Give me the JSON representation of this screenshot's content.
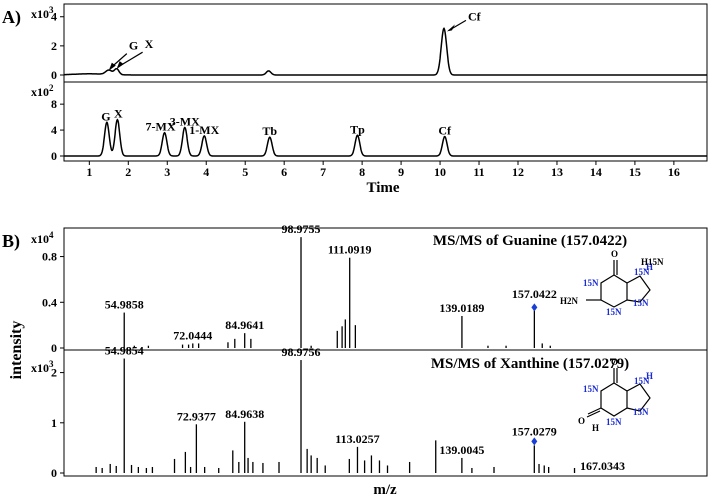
{
  "panel_labels": {
    "a": "A)",
    "b": "B)"
  },
  "chart_data": [
    {
      "type": "line",
      "panel": "A) top trace",
      "multiplier": {
        "base": "x10",
        "exp": "3"
      },
      "ylim": [
        0,
        4.6
      ],
      "y_ticks": [
        "0",
        "2",
        "4"
      ],
      "x_ticks": [
        "1",
        "2",
        "3",
        "4",
        "5",
        "6",
        "7",
        "8",
        "9",
        "10",
        "11",
        "12",
        "13",
        "14",
        "15",
        "16"
      ],
      "xlim": [
        0.35,
        16.85
      ],
      "peaks": [
        {
          "x": 0.1,
          "h": 0.25,
          "w": 0.08
        },
        {
          "x": 1.5,
          "h": 0.3,
          "w": 0.08
        },
        {
          "x": 1.7,
          "h": 0.4,
          "w": 0.06
        },
        {
          "x": 5.6,
          "h": 0.28,
          "w": 0.06
        },
        {
          "x": 10.1,
          "h": 3.2,
          "w": 0.07
        }
      ],
      "annotations": [
        {
          "label": "G",
          "x": 1.5,
          "y": 0.3
        },
        {
          "label": "X",
          "x": 1.7,
          "y": 0.4
        },
        {
          "label": "Cf",
          "x": 10.1,
          "y": 3.2
        }
      ]
    },
    {
      "type": "line",
      "panel": "A) bottom trace",
      "multiplier": {
        "base": "x10",
        "exp": "2"
      },
      "ylim": [
        0,
        10.8
      ],
      "y_ticks": [
        "0",
        "4",
        "8"
      ],
      "x_ticks": [
        "1",
        "2",
        "3",
        "4",
        "5",
        "6",
        "7",
        "8",
        "9",
        "10",
        "11",
        "12",
        "13",
        "14",
        "15",
        "16"
      ],
      "xlim": [
        0.35,
        16.85
      ],
      "xlabel": "Time",
      "peaks": [
        {
          "x": 1.45,
          "h": 5.2,
          "w": 0.06
        },
        {
          "x": 1.72,
          "h": 5.6,
          "w": 0.06
        },
        {
          "x": 2.93,
          "h": 3.6,
          "w": 0.06
        },
        {
          "x": 3.45,
          "h": 4.4,
          "w": 0.06
        },
        {
          "x": 3.95,
          "h": 3.1,
          "w": 0.06
        },
        {
          "x": 5.63,
          "h": 2.9,
          "w": 0.06
        },
        {
          "x": 7.88,
          "h": 3.2,
          "w": 0.06
        },
        {
          "x": 10.12,
          "h": 3.0,
          "w": 0.06
        }
      ],
      "annotations": [
        {
          "label": "G",
          "x": 1.45,
          "y": 5.2
        },
        {
          "label": "X",
          "x": 1.72,
          "y": 5.6
        },
        {
          "label": "7-MX",
          "x": 2.93,
          "y": 3.6
        },
        {
          "label": "3-MX",
          "x": 3.45,
          "y": 4.4
        },
        {
          "label": "1-MX",
          "x": 3.95,
          "y": 3.1
        },
        {
          "label": "Tb",
          "x": 5.63,
          "y": 2.9
        },
        {
          "label": "Tp",
          "x": 7.88,
          "y": 3.2
        },
        {
          "label": "Cf",
          "x": 10.12,
          "y": 3.0
        }
      ]
    },
    {
      "type": "bar",
      "panel": "B) top spectrum",
      "title": "MS/MS of Guanine (157.0422)",
      "multiplier": {
        "base": "x10",
        "exp": "4"
      },
      "ylim": [
        0,
        1.05
      ],
      "y_ticks": [
        "0",
        "0.4",
        "0.8"
      ],
      "xlim": [
        40,
        200
      ],
      "bars": [
        {
          "x": 54.9858,
          "y": 0.31
        },
        {
          "x": 57.5,
          "y": 0.02
        },
        {
          "x": 61.0,
          "y": 0.02
        },
        {
          "x": 69.5,
          "y": 0.03
        },
        {
          "x": 71.0,
          "y": 0.03
        },
        {
          "x": 72.0444,
          "y": 0.04
        },
        {
          "x": 73.5,
          "y": 0.04
        },
        {
          "x": 80.8,
          "y": 0.05
        },
        {
          "x": 82.5,
          "y": 0.08
        },
        {
          "x": 84.9641,
          "y": 0.13
        },
        {
          "x": 86.5,
          "y": 0.08
        },
        {
          "x": 98.9755,
          "y": 0.97
        },
        {
          "x": 101.5,
          "y": 0.02
        },
        {
          "x": 108.0,
          "y": 0.15
        },
        {
          "x": 109.2,
          "y": 0.19
        },
        {
          "x": 110.0,
          "y": 0.25
        },
        {
          "x": 111.0919,
          "y": 0.79
        },
        {
          "x": 112.5,
          "y": 0.2
        },
        {
          "x": 139.0189,
          "y": 0.28
        },
        {
          "x": 145.5,
          "y": 0.02
        },
        {
          "x": 150.0,
          "y": 0.02
        },
        {
          "x": 157.0422,
          "y": 0.35
        },
        {
          "x": 159.0,
          "y": 0.04
        },
        {
          "x": 161.0,
          "y": 0.02
        }
      ],
      "labels": [
        {
          "text": "54.9858",
          "x": 54.9858,
          "y": 0.31
        },
        {
          "text": "72.0444",
          "x": 72.0444,
          "y": 0.04
        },
        {
          "text": "84.9641",
          "x": 84.9641,
          "y": 0.13
        },
        {
          "text": "98.9755",
          "x": 98.9755,
          "y": 0.97
        },
        {
          "text": "111.0919",
          "x": 111.0919,
          "y": 0.79
        },
        {
          "text": "139.0189",
          "x": 139.0189,
          "y": 0.28
        },
        {
          "text": "157.0422",
          "x": 157.0422,
          "y": 0.35
        }
      ],
      "precursor": {
        "x": 157.0422,
        "y": 0.32
      }
    },
    {
      "type": "bar",
      "panel": "B) bottom spectrum",
      "title": "MS/MS of Xanthine (157.0279)",
      "multiplier": {
        "base": "x10",
        "exp": "3"
      },
      "ylim": [
        0,
        2.45
      ],
      "y_ticks": [
        "0",
        "1",
        "2"
      ],
      "xlim": [
        40,
        200
      ],
      "xlabel": "m/z",
      "ylabel": "intensity",
      "bars": [
        {
          "x": 48.0,
          "y": 0.12
        },
        {
          "x": 49.5,
          "y": 0.1
        },
        {
          "x": 51.5,
          "y": 0.18
        },
        {
          "x": 53.0,
          "y": 0.14
        },
        {
          "x": 54.9854,
          "y": 2.28
        },
        {
          "x": 56.8,
          "y": 0.16
        },
        {
          "x": 58.5,
          "y": 0.12
        },
        {
          "x": 60.5,
          "y": 0.1
        },
        {
          "x": 62.0,
          "y": 0.12
        },
        {
          "x": 67.5,
          "y": 0.28
        },
        {
          "x": 70.2,
          "y": 0.42
        },
        {
          "x": 71.5,
          "y": 0.12
        },
        {
          "x": 72.9377,
          "y": 0.97
        },
        {
          "x": 75.0,
          "y": 0.12
        },
        {
          "x": 78.5,
          "y": 0.1
        },
        {
          "x": 82.0,
          "y": 0.45
        },
        {
          "x": 83.5,
          "y": 0.22
        },
        {
          "x": 84.9638,
          "y": 1.02
        },
        {
          "x": 85.8,
          "y": 0.3
        },
        {
          "x": 87.0,
          "y": 0.22
        },
        {
          "x": 89.5,
          "y": 0.2
        },
        {
          "x": 93.5,
          "y": 0.22
        },
        {
          "x": 98.9756,
          "y": 2.25
        },
        {
          "x": 100.5,
          "y": 0.48
        },
        {
          "x": 101.5,
          "y": 0.35
        },
        {
          "x": 103.0,
          "y": 0.3
        },
        {
          "x": 105.0,
          "y": 0.15
        },
        {
          "x": 111.0,
          "y": 0.28
        },
        {
          "x": 113.0257,
          "y": 0.52
        },
        {
          "x": 114.8,
          "y": 0.25
        },
        {
          "x": 116.5,
          "y": 0.35
        },
        {
          "x": 118.5,
          "y": 0.25
        },
        {
          "x": 120.5,
          "y": 0.15
        },
        {
          "x": 126.0,
          "y": 0.22
        },
        {
          "x": 132.5,
          "y": 0.65
        },
        {
          "x": 139.0045,
          "y": 0.3
        },
        {
          "x": 141.5,
          "y": 0.1
        },
        {
          "x": 147.0,
          "y": 0.12
        },
        {
          "x": 157.0279,
          "y": 0.55
        },
        {
          "x": 158.2,
          "y": 0.18
        },
        {
          "x": 159.5,
          "y": 0.15
        },
        {
          "x": 160.6,
          "y": 0.12
        },
        {
          "x": 167.0343,
          "y": 0.1
        }
      ],
      "labels": [
        {
          "text": "54.9854",
          "x": 54.9854,
          "y": 2.28
        },
        {
          "text": "72.9377",
          "x": 72.9377,
          "y": 0.97
        },
        {
          "text": "84.9638",
          "x": 84.9638,
          "y": 1.02
        },
        {
          "text": "98.9756",
          "x": 98.9756,
          "y": 2.25
        },
        {
          "text": "113.0257",
          "x": 113.0257,
          "y": 0.52
        },
        {
          "text": "139.0045",
          "x": 139.0045,
          "y": 0.3
        },
        {
          "text": "157.0279",
          "x": 157.0279,
          "y": 0.55
        },
        {
          "text": "167.0343",
          "x": 167.0343,
          "y": 0.1
        }
      ],
      "precursor": {
        "x": 157.0279,
        "y": 0.55
      }
    }
  ],
  "structures": {
    "guanine": {
      "atom_labels": [
        "O",
        "H",
        "15N",
        "15N",
        "15N",
        "15N",
        "H15N",
        "H2N"
      ]
    },
    "xanthine": {
      "atom_labels": [
        "O",
        "H",
        "15N",
        "15N",
        "15N",
        "O",
        "H",
        "15N"
      ]
    }
  },
  "colors": {
    "trace": "#000000",
    "isotope_label": "#1a2bd6",
    "precursor_marker": "#1a3fd6"
  }
}
